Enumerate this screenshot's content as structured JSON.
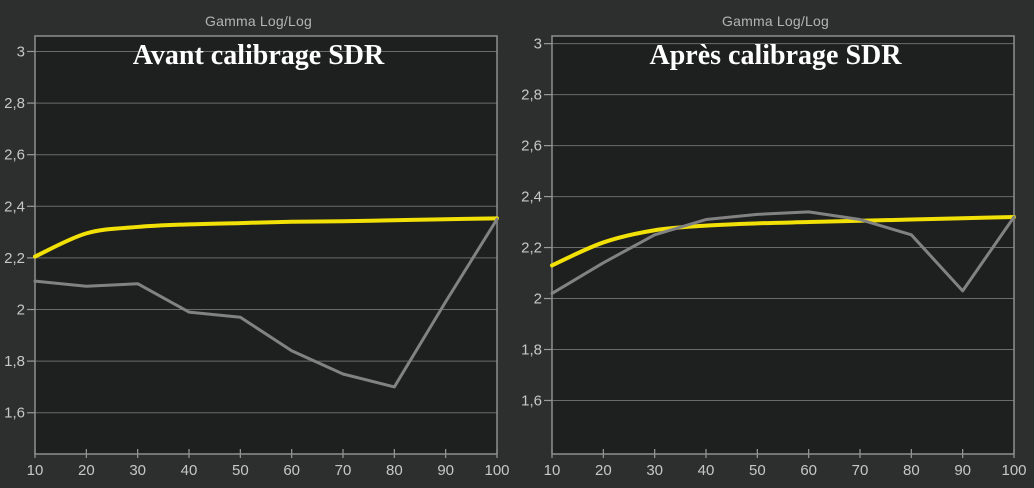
{
  "colors": {
    "background": "#2d2e2e",
    "plot_background": "#1e1f1f",
    "gridline": "#6b6b6b",
    "plot_border": "#8f8f8f",
    "tick_mark": "#9a9a9a",
    "tick_label": "#c7c7c7",
    "header_text": "#b4b4b4",
    "title_text": "#ffffff",
    "reference_line": "#f2e106",
    "measured_line": "#828282"
  },
  "chart_data": [
    {
      "type": "line",
      "panel": "before-calibration",
      "header": "Gamma Log/Log",
      "title": "Avant calibrage SDR",
      "x": [
        10,
        20,
        30,
        40,
        50,
        60,
        70,
        80,
        90,
        100
      ],
      "x_tick_labels": [
        "10",
        "20",
        "30",
        "40",
        "50",
        "60",
        "70",
        "80",
        "90",
        "100"
      ],
      "xlim": [
        10,
        100
      ],
      "ylim": [
        1.44,
        3.06
      ],
      "y_gridline_values": [
        3.0,
        2.8,
        2.6,
        2.4,
        2.2,
        2.0,
        1.8,
        1.6
      ],
      "y_tick_labels": [
        "3",
        "2,8",
        "2,6",
        "2,4",
        "2,2",
        "2",
        "1,8",
        "1,6"
      ],
      "grid": "horizontal-only",
      "legend": "none",
      "series": [
        {
          "name": "reference-gamma",
          "color": "#f2e106",
          "width": 4,
          "smooth": true,
          "values": [
            2.205,
            2.295,
            2.32,
            2.33,
            2.335,
            2.34,
            2.342,
            2.346,
            2.35,
            2.353
          ]
        },
        {
          "name": "measured-gamma",
          "color": "#828282",
          "width": 3,
          "smooth": false,
          "values": [
            2.11,
            2.09,
            2.1,
            1.99,
            1.97,
            1.84,
            1.75,
            1.7,
            2.03,
            2.35
          ]
        }
      ]
    },
    {
      "type": "line",
      "panel": "after-calibration",
      "header": "Gamma Log/Log",
      "title": "Après calibrage SDR",
      "x": [
        10,
        20,
        30,
        40,
        50,
        60,
        70,
        80,
        90,
        100
      ],
      "x_tick_labels": [
        "10",
        "20",
        "30",
        "40",
        "50",
        "60",
        "70",
        "80",
        "90",
        "100"
      ],
      "xlim": [
        10,
        100
      ],
      "ylim": [
        1.39,
        3.03
      ],
      "y_gridline_values": [
        3.0,
        2.8,
        2.6,
        2.4,
        2.2,
        2.0,
        1.8,
        1.6
      ],
      "y_tick_labels": [
        "3",
        "2,8",
        "2,6",
        "2,4",
        "2,2",
        "2",
        "1,8",
        "1,6"
      ],
      "grid": "horizontal-only",
      "legend": "none",
      "series": [
        {
          "name": "reference-gamma",
          "color": "#f2e106",
          "width": 4,
          "smooth": true,
          "values": [
            2.13,
            2.22,
            2.268,
            2.286,
            2.295,
            2.3,
            2.305,
            2.31,
            2.315,
            2.32
          ]
        },
        {
          "name": "measured-gamma",
          "color": "#828282",
          "width": 3,
          "smooth": false,
          "values": [
            2.02,
            2.14,
            2.25,
            2.31,
            2.33,
            2.34,
            2.31,
            2.25,
            2.03,
            2.32
          ]
        }
      ]
    }
  ]
}
